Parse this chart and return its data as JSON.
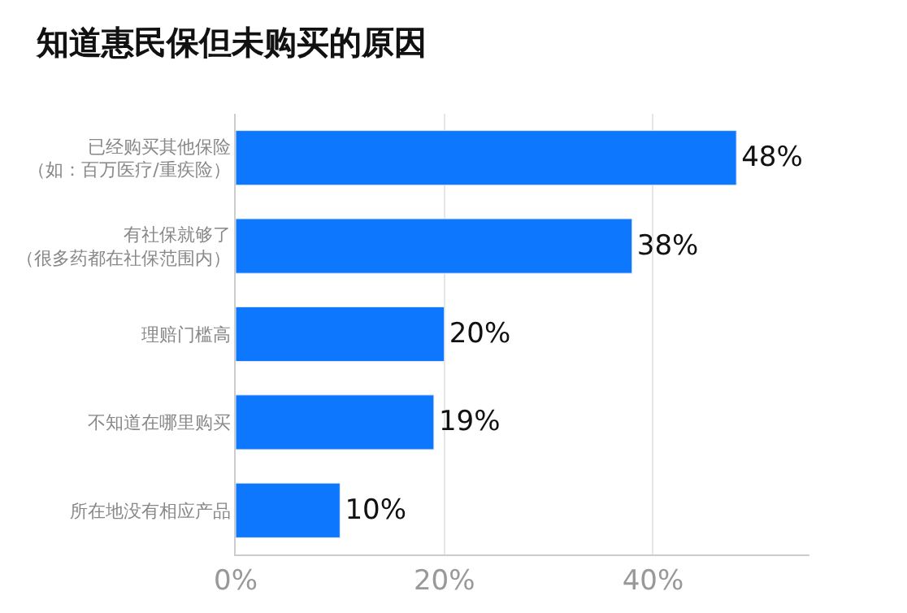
{
  "chart_data": {
    "type": "bar",
    "orientation": "horizontal",
    "title": "知道惠民保但未购买的原因",
    "categories": [
      "已经购买其他保险（如：百万医疗/重疾险）",
      "有社保就够了（很多药都在社保范围内）",
      "理赔门槛高",
      "不知道在哪里购买",
      "所在地没有相应产品"
    ],
    "values": [
      48,
      38,
      20,
      19,
      10
    ],
    "color": "#0d77fd",
    "value_labels": [
      "48%",
      "38%",
      "20%",
      "19%",
      "10%"
    ],
    "xlim": [
      0,
      55
    ],
    "xticks": [
      {
        "value": 0,
        "label": "0%"
      },
      {
        "value": 20,
        "label": "20%"
      },
      {
        "value": 40,
        "label": "40%"
      }
    ],
    "grid": "x"
  }
}
